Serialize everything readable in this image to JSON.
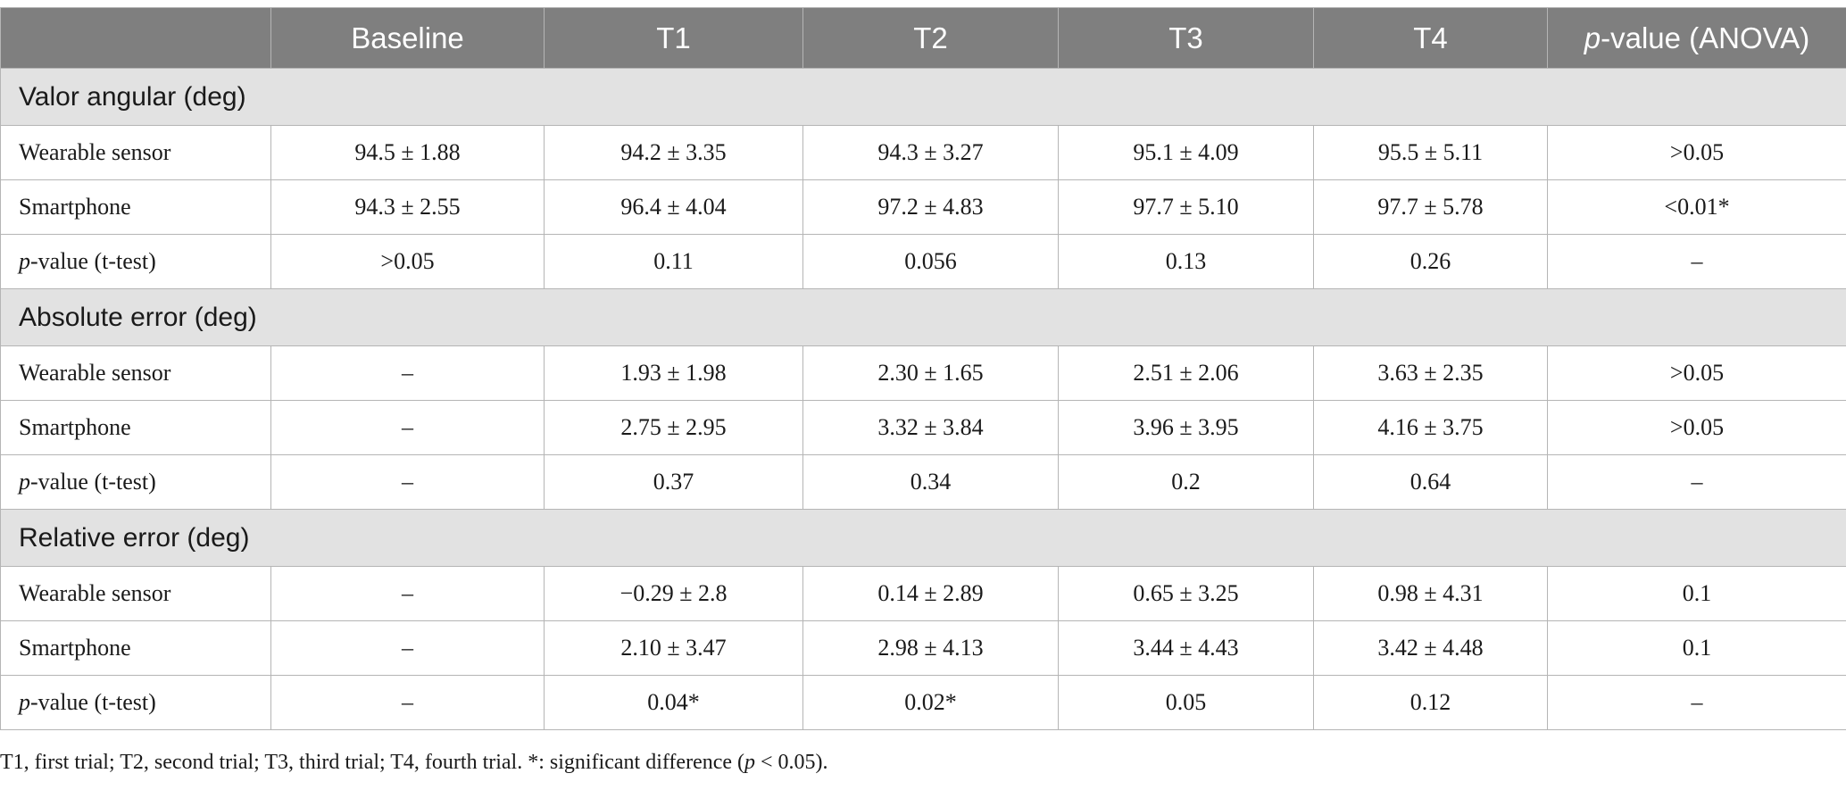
{
  "header": {
    "col0": "",
    "baseline": "Baseline",
    "t1": "T1",
    "t2": "T2",
    "t3": "T3",
    "t4": "T4",
    "pvalue_italic": "p",
    "pvalue_rest": "-value (ANOVA)"
  },
  "sections": [
    {
      "title": "Valor angular (deg)",
      "rows": [
        {
          "label": "Wearable sensor",
          "baseline": "94.5 ± 1.88",
          "t1": "94.2 ± 3.35",
          "t2": "94.3 ± 3.27",
          "t3": "95.1 ± 4.09",
          "t4": "95.5 ± 5.11",
          "p": ">0.05"
        },
        {
          "label": "Smartphone",
          "baseline": "94.3 ± 2.55",
          "t1": "96.4 ± 4.04",
          "t2": "97.2 ± 4.83",
          "t3": "97.7 ± 5.10",
          "t4": "97.7 ± 5.78",
          "p": "<0.01*"
        },
        {
          "label_italic": "p",
          "label_rest": "-value (t-test)",
          "baseline": ">0.05",
          "t1": "0.11",
          "t2": "0.056",
          "t3": "0.13",
          "t4": "0.26",
          "p": "–"
        }
      ]
    },
    {
      "title": "Absolute error (deg)",
      "rows": [
        {
          "label": "Wearable sensor",
          "baseline": "–",
          "t1": "1.93 ± 1.98",
          "t2": "2.30 ± 1.65",
          "t3": "2.51 ± 2.06",
          "t4": "3.63 ± 2.35",
          "p": ">0.05"
        },
        {
          "label": "Smartphone",
          "baseline": "–",
          "t1": "2.75 ± 2.95",
          "t2": "3.32 ± 3.84",
          "t3": "3.96 ± 3.95",
          "t4": "4.16 ± 3.75",
          "p": ">0.05"
        },
        {
          "label_italic": "p",
          "label_rest": "-value (t-test)",
          "baseline": "–",
          "t1": "0.37",
          "t2": "0.34",
          "t3": "0.2",
          "t4": "0.64",
          "p": "–"
        }
      ]
    },
    {
      "title": "Relative error (deg)",
      "rows": [
        {
          "label": "Wearable sensor",
          "baseline": "–",
          "t1": "−0.29 ± 2.8",
          "t2": "0.14 ± 2.89",
          "t3": "0.65 ± 3.25",
          "t4": "0.98 ± 4.31",
          "p": "0.1"
        },
        {
          "label": "Smartphone",
          "baseline": "–",
          "t1": "2.10 ± 3.47",
          "t2": "2.98 ± 4.13",
          "t3": "3.44 ± 4.43",
          "t4": "3.42 ± 4.48",
          "p": "0.1"
        },
        {
          "label_italic": "p",
          "label_rest": "-value (t-test)",
          "baseline": "–",
          "t1": "0.04*",
          "t2": "0.02*",
          "t3": "0.05",
          "t4": "0.12",
          "p": "–"
        }
      ]
    }
  ],
  "footnote": {
    "part1": "T1, first trial; T2, second trial; T3, third trial; T4, fourth trial. *: significant difference (",
    "italic": "p",
    "part2": " < 0.05)."
  }
}
